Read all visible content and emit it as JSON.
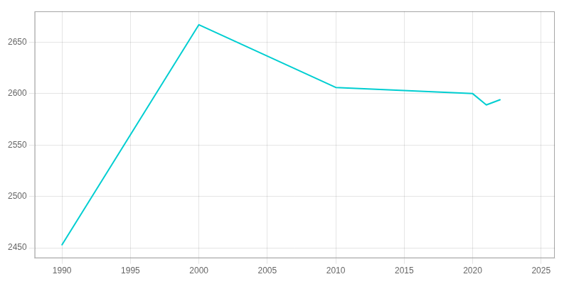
{
  "chart_data": {
    "type": "line",
    "x": [
      1990,
      2000,
      2010,
      2020,
      2021,
      2022
    ],
    "values": [
      2453,
      2667,
      2606,
      2600,
      2589,
      2594
    ],
    "color": "#00CED1",
    "xlim": [
      1988,
      2026
    ],
    "ylim": [
      2440,
      2680
    ],
    "xticks": [
      1990,
      1995,
      2000,
      2005,
      2010,
      2015,
      2020,
      2025
    ],
    "yticks": [
      2450,
      2500,
      2550,
      2600,
      2650
    ],
    "grid": true
  }
}
